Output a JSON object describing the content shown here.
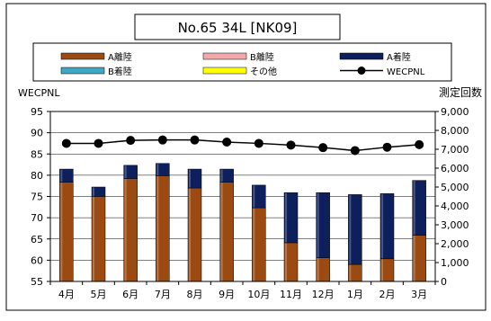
{
  "chart_data": {
    "type": "bar",
    "title": "No.65 34L [NK09]",
    "categories": [
      "4月",
      "5月",
      "6月",
      "7月",
      "8月",
      "9月",
      "10月",
      "11月",
      "12月",
      "1月",
      "2月",
      "3月"
    ],
    "stacked": true,
    "series": [
      {
        "name": "A離陸",
        "type": "bar",
        "axis": "right",
        "values": [
          5250,
          4500,
          5450,
          5600,
          4950,
          5250,
          3900,
          2050,
          1250,
          900,
          1200,
          2450
        ]
      },
      {
        "name": "B離陸",
        "type": "bar",
        "axis": "right",
        "values": [
          0,
          0,
          0,
          0,
          0,
          0,
          0,
          0,
          0,
          0,
          0,
          0
        ]
      },
      {
        "name": "A着陸",
        "type": "bar",
        "axis": "right",
        "values": [
          700,
          500,
          700,
          650,
          1000,
          700,
          1200,
          2650,
          3450,
          3700,
          3450,
          2900
        ]
      },
      {
        "name": "B着陸",
        "type": "bar",
        "axis": "right",
        "values": [
          0,
          0,
          0,
          0,
          0,
          0,
          0,
          0,
          0,
          0,
          0,
          0
        ]
      },
      {
        "name": "その他",
        "type": "bar",
        "axis": "right",
        "values": [
          0,
          0,
          0,
          0,
          0,
          0,
          0,
          0,
          0,
          0,
          0,
          0
        ]
      },
      {
        "name": "WECPNL",
        "type": "line",
        "axis": "left",
        "values": [
          87.5,
          87.5,
          88.2,
          88.3,
          88.3,
          87.8,
          87.5,
          87.1,
          86.5,
          85.8,
          86.6,
          87.2
        ]
      }
    ],
    "colors": {
      "A離陸": "#9b4a12",
      "B離陸": "#f2a8a8",
      "A着陸": "#0d1f5c",
      "B着陸": "#3ea7c4",
      "その他": "#ffff00",
      "WECPNL": "#000000"
    },
    "ylabel_left": "WECPNL",
    "ylabel_right": "測定回数",
    "ylim_left": [
      55,
      95
    ],
    "ylim_right": [
      0,
      9000
    ],
    "yticks_left": [
      "95",
      "90",
      "85",
      "80",
      "75",
      "70",
      "65",
      "60",
      "55"
    ],
    "yticks_right": [
      "9,000",
      "8,000",
      "7,000",
      "6,000",
      "5,000",
      "4,000",
      "3,000",
      "2,000",
      "1,000",
      "0"
    ],
    "grid": true,
    "legend_placement": "top"
  }
}
